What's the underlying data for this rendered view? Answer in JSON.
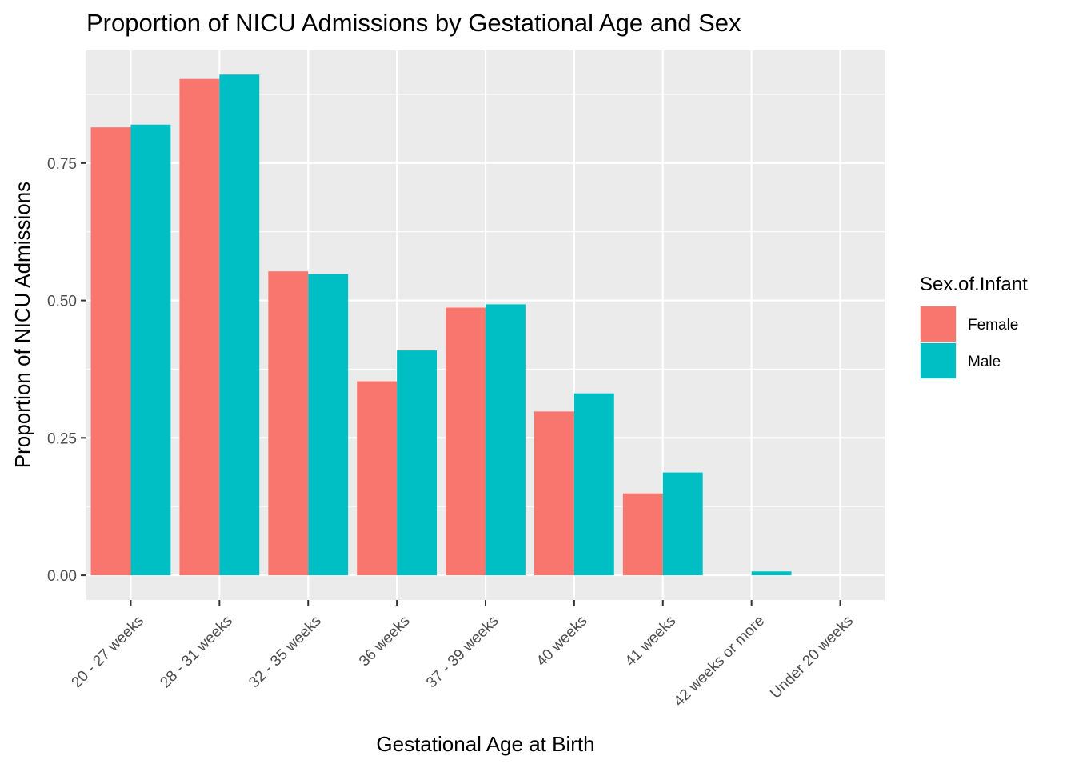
{
  "chart_data": {
    "type": "bar",
    "title": "Proportion of NICU Admissions by Gestational Age and Sex",
    "xlabel": "Gestational Age at Birth",
    "ylabel": "Proportion of NICU Admissions",
    "categories": [
      "20 - 27 weeks",
      "28 - 31 weeks",
      "32 - 35 weeks",
      "36 weeks",
      "37 - 39 weeks",
      "40 weeks",
      "41 weeks",
      "42 weeks or more",
      "Under 20 weeks"
    ],
    "series": [
      {
        "name": "Female",
        "color": "#F8766D",
        "values": [
          0.815,
          0.903,
          0.553,
          0.353,
          0.487,
          0.298,
          0.149,
          0.0,
          0.0
        ]
      },
      {
        "name": "Male",
        "color": "#00BFC4",
        "values": [
          0.82,
          0.911,
          0.548,
          0.409,
          0.493,
          0.331,
          0.187,
          0.007,
          0.0
        ]
      }
    ],
    "yticks": [
      0.0,
      0.25,
      0.5,
      0.75
    ],
    "ytick_labels": [
      "0.00",
      "0.25",
      "0.50",
      "0.75"
    ],
    "ylim": [
      -0.045,
      0.955
    ],
    "grid": true,
    "legend": {
      "title": "Sex.of.Infant",
      "placement": "right"
    },
    "panel_background": "#EBEBEB"
  }
}
